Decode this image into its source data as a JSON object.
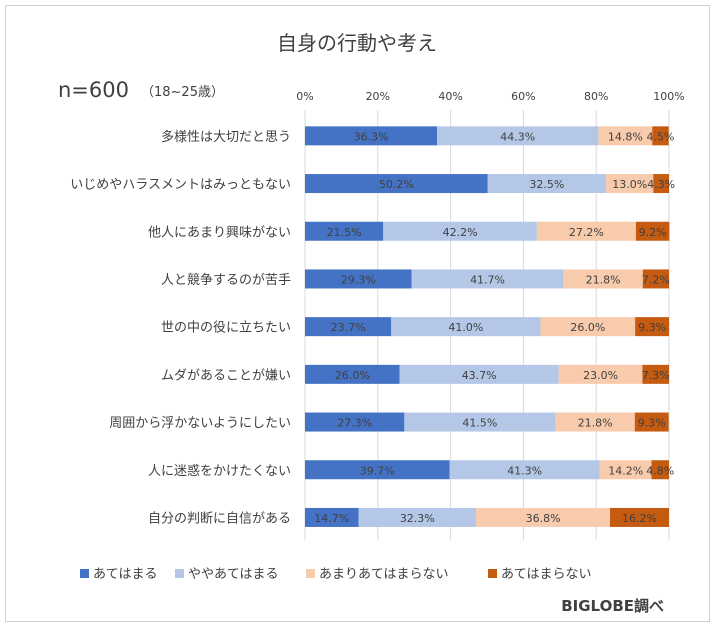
{
  "chart_data": {
    "type": "bar",
    "orientation": "horizontal-stacked-100",
    "title": "自身の行動や考え",
    "subtitle_n": "n=600",
    "subtitle_age": "（18~25歳）",
    "source": "BIGLOBE調べ",
    "xlim": [
      0,
      100
    ],
    "ticks": [
      "0%",
      "20%",
      "40%",
      "60%",
      "80%",
      "100%"
    ],
    "tick_values": [
      0,
      20,
      40,
      60,
      80,
      100
    ],
    "grid": true,
    "legend_position": "bottom",
    "categories": [
      "多様性は大切だと思う",
      "いじめやハラスメントはみっともない",
      "他人にあまり興味がない",
      "人と競争するのが苦手",
      "世の中の役に立ちたい",
      "ムダがあることが嫌い",
      "周囲から浮かないようにしたい",
      "人に迷惑をかけたくない",
      "自分の判断に自信がある"
    ],
    "series": [
      {
        "name": "あてはまる",
        "color": "#4472c4",
        "values": [
          36.3,
          50.2,
          21.5,
          29.3,
          23.7,
          26.0,
          27.3,
          39.7,
          14.7
        ],
        "labels": [
          "36.3%",
          "50.2%",
          "21.5%",
          "29.3%",
          "23.7%",
          "26.0%",
          "27.3%",
          "39.7%",
          "14.7%"
        ]
      },
      {
        "name": "ややあてはまる",
        "color": "#b4c7e7",
        "values": [
          44.3,
          32.5,
          42.2,
          41.7,
          41.0,
          43.7,
          41.5,
          41.3,
          32.3
        ],
        "labels": [
          "44.3%",
          "32.5%",
          "42.2%",
          "41.7%",
          "41.0%",
          "43.7%",
          "41.5%",
          "41.3%",
          "32.3%"
        ]
      },
      {
        "name": "あまりあてはまらない",
        "color": "#f8cbad",
        "values": [
          14.8,
          13.0,
          27.2,
          21.8,
          26.0,
          23.0,
          21.8,
          14.2,
          36.8
        ],
        "labels": [
          "14.8%",
          "13.0%",
          "27.2%",
          "21.8%",
          "26.0%",
          "23.0%",
          "21.8%",
          "14.2%",
          "36.8%"
        ]
      },
      {
        "name": "あてはまらない",
        "color": "#c55a11",
        "values": [
          4.5,
          4.3,
          9.2,
          7.2,
          9.3,
          7.3,
          9.3,
          4.8,
          16.2
        ],
        "labels": [
          "4.5%",
          "4.3%",
          "9.2%",
          "7.2%",
          "9.3%",
          "7.3%",
          "9.3%",
          "4.8%",
          "16.2%"
        ]
      }
    ]
  }
}
